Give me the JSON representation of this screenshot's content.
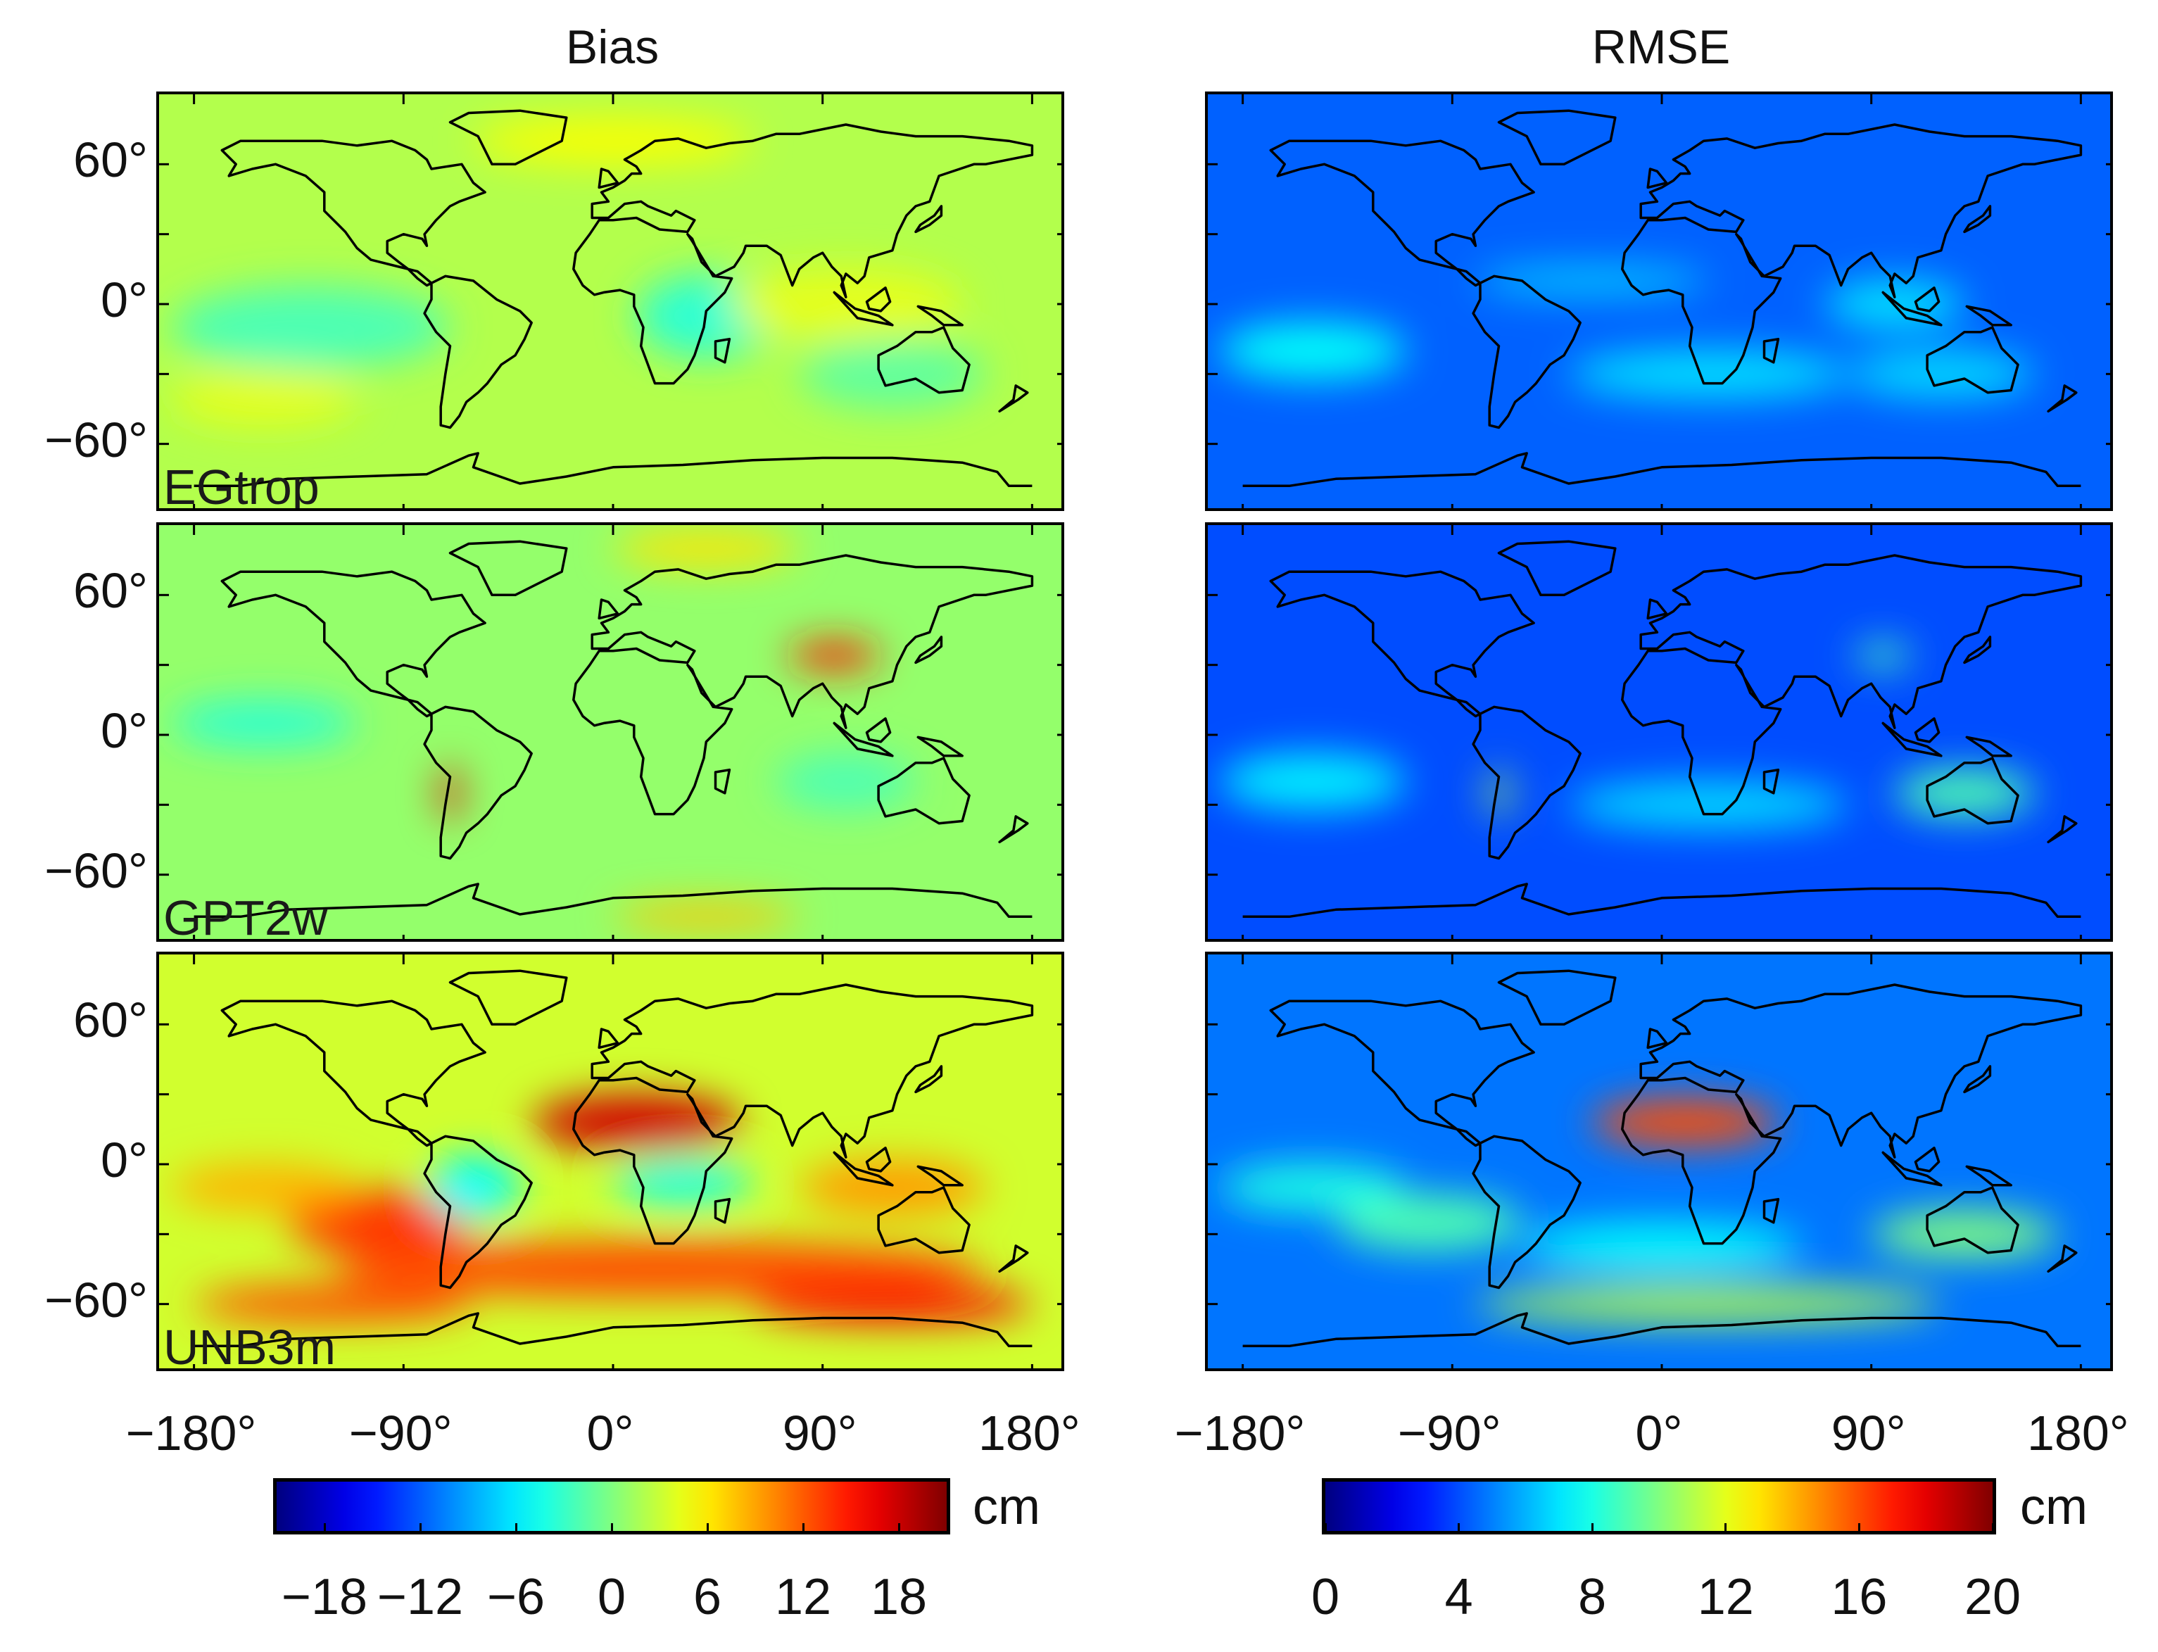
{
  "columns": [
    {
      "title": "Bias",
      "unit": "cm",
      "scale": "jet",
      "range": [
        -21,
        21
      ],
      "ticks": [
        "−18",
        "−12",
        "−6",
        "0",
        "6",
        "12",
        "18"
      ],
      "tick_values": [
        -18,
        -12,
        -6,
        0,
        6,
        12,
        18
      ]
    },
    {
      "title": "RMSE",
      "unit": "cm",
      "scale": "jet",
      "range": [
        0,
        20
      ],
      "ticks": [
        "0",
        "4",
        "8",
        "12",
        "16",
        "20"
      ],
      "tick_values": [
        0,
        4,
        8,
        12,
        16,
        20
      ]
    }
  ],
  "models": [
    "EGtrop",
    "GPT2w",
    "UNB3m"
  ],
  "lat_ticks": [
    "60°",
    "0°",
    "−60°"
  ],
  "lat_values": [
    60,
    0,
    -60
  ],
  "lon_ticks": [
    "−180°",
    "−90°",
    "0°",
    "90°",
    "180°"
  ],
  "lon_values": [
    -180,
    -90,
    0,
    90,
    180
  ],
  "map_extent": {
    "lon": [
      -195,
      195
    ],
    "lat": [
      -90,
      90
    ]
  },
  "colors": {
    "frame": "#000000",
    "coastline": "#000000"
  }
}
